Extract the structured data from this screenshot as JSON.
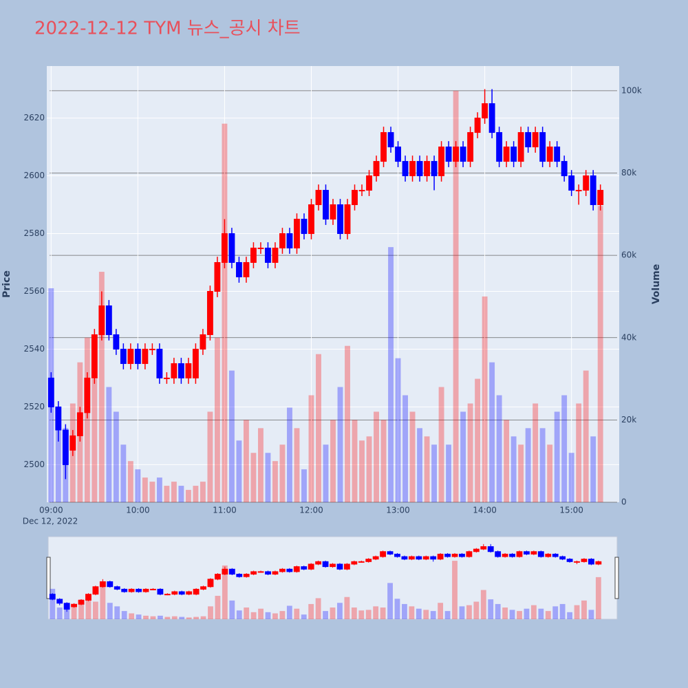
{
  "chart_data": {
    "type": "candlestick",
    "title": "2022-12-12 TYM 뉴스_공시 차트",
    "y_label": "Price",
    "y2_label": "Volume",
    "xtick_sublabel": "Dec 12, 2022",
    "up_color": "#ff0000",
    "down_color": "#0000ff",
    "x": [
      "2022-12-12 09:00",
      "2022-12-12 09:05",
      "2022-12-12 09:10",
      "2022-12-12 09:15",
      "2022-12-12 09:20",
      "2022-12-12 09:25",
      "2022-12-12 09:30",
      "2022-12-12 09:35",
      "2022-12-12 09:40",
      "2022-12-12 09:45",
      "2022-12-12 09:50",
      "2022-12-12 09:55",
      "2022-12-12 10:00",
      "2022-12-12 10:05",
      "2022-12-12 10:10",
      "2022-12-12 10:15",
      "2022-12-12 10:20",
      "2022-12-12 10:25",
      "2022-12-12 10:30",
      "2022-12-12 10:35",
      "2022-12-12 10:40",
      "2022-12-12 10:45",
      "2022-12-12 10:50",
      "2022-12-12 10:55",
      "2022-12-12 11:00",
      "2022-12-12 11:05",
      "2022-12-12 11:10",
      "2022-12-12 11:15",
      "2022-12-12 11:20",
      "2022-12-12 11:25",
      "2022-12-12 11:30",
      "2022-12-12 11:35",
      "2022-12-12 11:40",
      "2022-12-12 11:45",
      "2022-12-12 11:50",
      "2022-12-12 11:55",
      "2022-12-12 12:00",
      "2022-12-12 12:05",
      "2022-12-12 12:10",
      "2022-12-12 12:15",
      "2022-12-12 12:20",
      "2022-12-12 12:25",
      "2022-12-12 12:30",
      "2022-12-12 12:35",
      "2022-12-12 12:40",
      "2022-12-12 12:45",
      "2022-12-12 12:50",
      "2022-12-12 12:55",
      "2022-12-12 13:00",
      "2022-12-12 13:05",
      "2022-12-12 13:10",
      "2022-12-12 13:15",
      "2022-12-12 13:20",
      "2022-12-12 13:25",
      "2022-12-12 13:30",
      "2022-12-12 13:35",
      "2022-12-12 13:40",
      "2022-12-12 13:45",
      "2022-12-12 13:50",
      "2022-12-12 13:55",
      "2022-12-12 14:00",
      "2022-12-12 14:05",
      "2022-12-12 14:10",
      "2022-12-12 14:15",
      "2022-12-12 14:20",
      "2022-12-12 14:25",
      "2022-12-12 14:30",
      "2022-12-12 14:35",
      "2022-12-12 14:40",
      "2022-12-12 14:45",
      "2022-12-12 14:50",
      "2022-12-12 14:55",
      "2022-12-12 15:00",
      "2022-12-12 15:05",
      "2022-12-12 15:10",
      "2022-12-12 15:15",
      "2022-12-12 15:20"
    ],
    "open": [
      2530,
      2520,
      2512,
      2505,
      2510,
      2518,
      2530,
      2545,
      2555,
      2545,
      2540,
      2535,
      2540,
      2535,
      2540,
      2540,
      2530,
      2530,
      2535,
      2530,
      2530,
      2540,
      2545,
      2560,
      2570,
      2580,
      2570,
      2565,
      2570,
      2575,
      2575,
      2570,
      2575,
      2580,
      2575,
      2585,
      2580,
      2590,
      2595,
      2585,
      2590,
      2580,
      2590,
      2595,
      2595,
      2600,
      2605,
      2615,
      2610,
      2605,
      2600,
      2605,
      2600,
      2605,
      2600,
      2610,
      2605,
      2610,
      2605,
      2615,
      2620,
      2625,
      2615,
      2605,
      2610,
      2605,
      2615,
      2610,
      2615,
      2605,
      2610,
      2605,
      2600,
      2595,
      2595,
      2600,
      2590
    ],
    "high": [
      2532,
      2522,
      2514,
      2512,
      2520,
      2532,
      2547,
      2560,
      2557,
      2547,
      2542,
      2542,
      2542,
      2542,
      2542,
      2542,
      2532,
      2537,
      2537,
      2537,
      2542,
      2547,
      2562,
      2572,
      2585,
      2582,
      2572,
      2572,
      2577,
      2577,
      2577,
      2577,
      2582,
      2582,
      2587,
      2587,
      2592,
      2597,
      2597,
      2592,
      2592,
      2592,
      2597,
      2597,
      2602,
      2607,
      2617,
      2617,
      2612,
      2607,
      2607,
      2607,
      2607,
      2607,
      2612,
      2612,
      2612,
      2612,
      2617,
      2622,
      2630,
      2630,
      2617,
      2612,
      2612,
      2617,
      2617,
      2617,
      2617,
      2612,
      2612,
      2607,
      2602,
      2597,
      2602,
      2602,
      2597
    ],
    "low": [
      2518,
      2508,
      2495,
      2503,
      2508,
      2516,
      2528,
      2543,
      2543,
      2538,
      2533,
      2533,
      2533,
      2533,
      2538,
      2528,
      2528,
      2528,
      2528,
      2528,
      2528,
      2538,
      2543,
      2558,
      2568,
      2568,
      2563,
      2563,
      2568,
      2573,
      2568,
      2568,
      2573,
      2573,
      2573,
      2578,
      2578,
      2588,
      2583,
      2583,
      2578,
      2578,
      2588,
      2593,
      2593,
      2598,
      2603,
      2608,
      2603,
      2598,
      2598,
      2598,
      2598,
      2595,
      2598,
      2603,
      2603,
      2603,
      2603,
      2613,
      2618,
      2613,
      2603,
      2603,
      2603,
      2603,
      2608,
      2608,
      2603,
      2603,
      2603,
      2598,
      2593,
      2590,
      2593,
      2588,
      2588
    ],
    "close": [
      2520,
      2512,
      2500,
      2510,
      2518,
      2530,
      2545,
      2555,
      2545,
      2540,
      2535,
      2540,
      2535,
      2540,
      2540,
      2530,
      2530,
      2535,
      2530,
      2535,
      2540,
      2545,
      2560,
      2570,
      2580,
      2570,
      2565,
      2570,
      2575,
      2575,
      2570,
      2575,
      2580,
      2575,
      2585,
      2580,
      2590,
      2595,
      2585,
      2590,
      2580,
      2590,
      2595,
      2595,
      2600,
      2605,
      2615,
      2610,
      2605,
      2600,
      2605,
      2600,
      2605,
      2600,
      2610,
      2605,
      2610,
      2605,
      2615,
      2620,
      2625,
      2615,
      2605,
      2610,
      2605,
      2615,
      2610,
      2615,
      2605,
      2610,
      2605,
      2600,
      2595,
      2595,
      2600,
      2590,
      2595
    ],
    "volume": [
      52000,
      20000,
      18000,
      24000,
      34000,
      40000,
      30000,
      56000,
      28000,
      22000,
      14000,
      10000,
      8000,
      6000,
      5000,
      6000,
      4000,
      5000,
      4000,
      3000,
      4000,
      5000,
      22000,
      40000,
      92000,
      32000,
      15000,
      20000,
      12000,
      18000,
      12000,
      10000,
      14000,
      23000,
      18000,
      8000,
      26000,
      36000,
      14000,
      20000,
      28000,
      38000,
      20000,
      15000,
      16000,
      22000,
      20000,
      62000,
      35000,
      26000,
      22000,
      18000,
      16000,
      14000,
      28000,
      14000,
      100000,
      22000,
      24000,
      30000,
      50000,
      34000,
      26000,
      20000,
      16000,
      14000,
      18000,
      24000,
      18000,
      14000,
      22000,
      26000,
      12000,
      24000,
      32000,
      16000,
      72000
    ],
    "xlim": [
      "2022-12-12 08:57",
      "2022-12-12 15:33"
    ],
    "xticks": [
      {
        "value": "2022-12-12 09:00",
        "label": "09:00"
      },
      {
        "value": "2022-12-12 10:00",
        "label": "10:00"
      },
      {
        "value": "2022-12-12 11:00",
        "label": "11:00"
      },
      {
        "value": "2022-12-12 12:00",
        "label": "12:00"
      },
      {
        "value": "2022-12-12 13:00",
        "label": "13:00"
      },
      {
        "value": "2022-12-12 14:00",
        "label": "14:00"
      },
      {
        "value": "2022-12-12 15:00",
        "label": "15:00"
      }
    ],
    "ylim": [
      2487,
      2638
    ],
    "yticks": [
      2500,
      2520,
      2540,
      2560,
      2580,
      2600,
      2620
    ],
    "y2lim": [
      0,
      106000
    ],
    "y2ticks": [
      0,
      {
        "value": 20000,
        "label": "20k"
      },
      {
        "value": 40000,
        "label": "40k"
      },
      {
        "value": 60000,
        "label": "60k"
      },
      {
        "value": 80000,
        "label": "80k"
      },
      {
        "value": 100000,
        "label": "100k"
      }
    ],
    "grid": true,
    "range_slider": true
  }
}
